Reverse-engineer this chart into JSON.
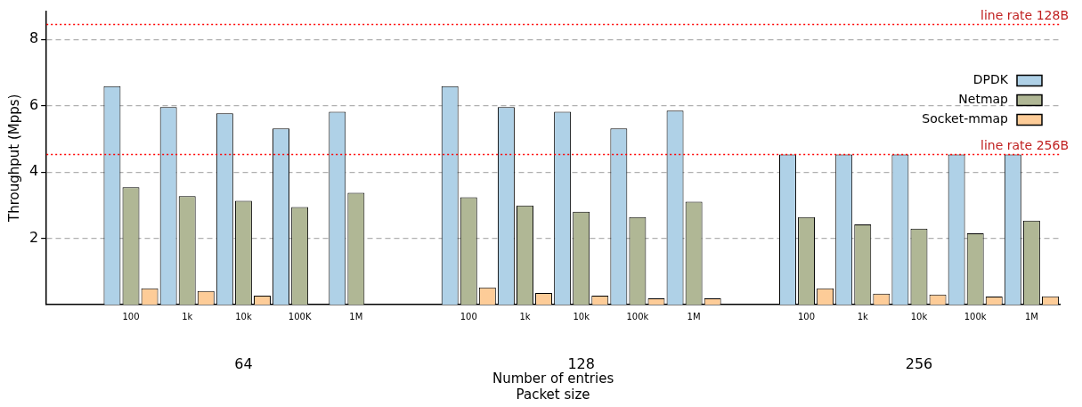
{
  "chart_data": {
    "type": "bar",
    "xlabel": "Number of entries\nPacket size",
    "ylabel": "Throughput (Mpps)",
    "categories": [
      null,
      "100",
      "1k",
      "10k",
      "100K",
      "1M",
      null,
      "100",
      "1k",
      "10k",
      "100k",
      "1M",
      null,
      "100",
      "1k",
      "10k",
      "100k",
      "1M"
    ],
    "series": [
      {
        "name": "DPDK",
        "color": "#afd1e7",
        "values": [
          null,
          6.59,
          5.96,
          5.77,
          5.31,
          5.82,
          null,
          6.59,
          5.96,
          5.82,
          5.31,
          5.85,
          null,
          4.53,
          4.53,
          4.53,
          4.53,
          4.53
        ]
      },
      {
        "name": "Netmap",
        "color": "#b0b795",
        "values": [
          null,
          3.54,
          3.27,
          3.13,
          2.94,
          3.37,
          null,
          3.24,
          2.99,
          2.8,
          2.64,
          3.1,
          null,
          2.64,
          2.42,
          2.29,
          2.15,
          2.53
        ]
      },
      {
        "name": "Socket-mmap",
        "color": "#fdcc98",
        "values": [
          null,
          0.49,
          0.41,
          0.27,
          null,
          null,
          null,
          0.52,
          0.35,
          0.27,
          0.19,
          0.19,
          null,
          0.49,
          0.33,
          0.3,
          0.24,
          0.25
        ]
      }
    ],
    "ylim": [
      0,
      8.85
    ],
    "yticks": [
      2,
      4,
      6,
      8
    ],
    "grid": "y",
    "legend": "top right",
    "annotations": [
      "64",
      "128",
      "256"
    ],
    "ref_lines": [
      {
        "axis": "y",
        "value": 8.45,
        "label": "line rate 128B",
        "color": "#ff0000",
        "line_style": "dotted"
      },
      {
        "axis": "y",
        "value": 4.53,
        "label": "line rate 256B",
        "color": "#ff0000",
        "line_style": "dotted"
      }
    ]
  }
}
